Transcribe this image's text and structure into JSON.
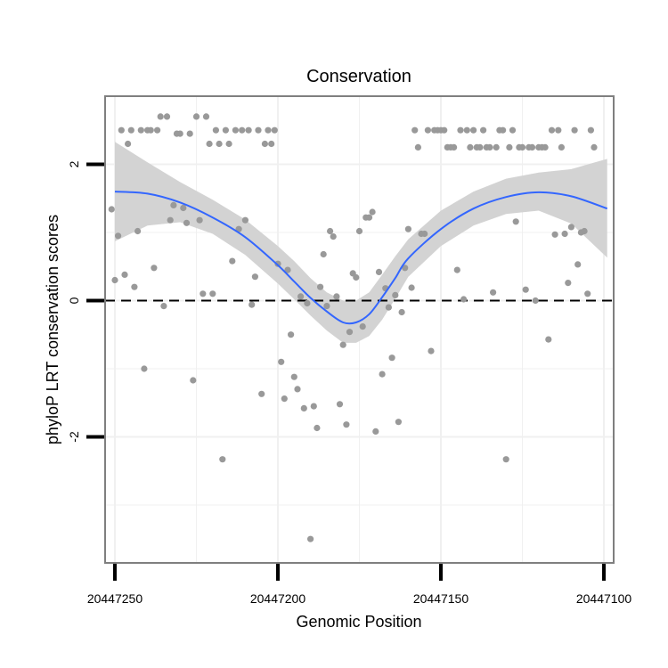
{
  "chart_data": {
    "type": "scatter",
    "title": "Conservation",
    "xlabel": "Genomic Position",
    "ylabel": "phyloP LRT conservation scores",
    "x_reversed": true,
    "xlim": [
      20447253,
      20447097
    ],
    "ylim": [
      -3.85,
      3.0
    ],
    "x_ticks": [
      20447250,
      20447200,
      20447150,
      20447100
    ],
    "x_tick_labels": [
      "20447250",
      "20447200",
      "20447150",
      "20447100"
    ],
    "y_ticks": [
      2,
      0,
      -2
    ],
    "y_tick_labels": [
      "2",
      "0",
      "-2"
    ],
    "reference_line": {
      "y": 0,
      "style": "dashed"
    },
    "grid": true,
    "colors": {
      "points": "#999999",
      "smooth": "#3366ff",
      "ribbon": "#d3d3d3",
      "panel_border": "#7f7f7f",
      "grid": "#f0f0f0"
    },
    "points": [
      {
        "x": 20447251,
        "y": 1.34
      },
      {
        "x": 20447250,
        "y": 0.3
      },
      {
        "x": 20447249,
        "y": 0.95
      },
      {
        "x": 20447248,
        "y": 2.5
      },
      {
        "x": 20447247,
        "y": 0.38
      },
      {
        "x": 20447246,
        "y": 2.3
      },
      {
        "x": 20447245,
        "y": 2.5
      },
      {
        "x": 20447244,
        "y": 0.2
      },
      {
        "x": 20447243,
        "y": 1.02
      },
      {
        "x": 20447242,
        "y": 2.5
      },
      {
        "x": 20447241,
        "y": -1.0
      },
      {
        "x": 20447240,
        "y": 2.5
      },
      {
        "x": 20447239,
        "y": 2.5
      },
      {
        "x": 20447238,
        "y": 0.48
      },
      {
        "x": 20447237,
        "y": 2.5
      },
      {
        "x": 20447236,
        "y": 2.7
      },
      {
        "x": 20447235,
        "y": -0.08
      },
      {
        "x": 20447234,
        "y": 2.7
      },
      {
        "x": 20447233,
        "y": 1.18
      },
      {
        "x": 20447232,
        "y": 1.4
      },
      {
        "x": 20447231,
        "y": 2.45
      },
      {
        "x": 20447230,
        "y": 2.45
      },
      {
        "x": 20447229,
        "y": 1.36
      },
      {
        "x": 20447228,
        "y": 1.14
      },
      {
        "x": 20447227,
        "y": 2.45
      },
      {
        "x": 20447226,
        "y": -1.17
      },
      {
        "x": 20447225,
        "y": 2.7
      },
      {
        "x": 20447224,
        "y": 1.18
      },
      {
        "x": 20447223,
        "y": 0.1
      },
      {
        "x": 20447222,
        "y": 2.7
      },
      {
        "x": 20447221,
        "y": 2.3
      },
      {
        "x": 20447220,
        "y": 0.1
      },
      {
        "x": 20447219,
        "y": 2.5
      },
      {
        "x": 20447218,
        "y": 2.3
      },
      {
        "x": 20447217,
        "y": -2.33
      },
      {
        "x": 20447216,
        "y": 2.5
      },
      {
        "x": 20447215,
        "y": 2.3
      },
      {
        "x": 20447214,
        "y": 0.58
      },
      {
        "x": 20447213,
        "y": 2.5
      },
      {
        "x": 20447212,
        "y": 1.05
      },
      {
        "x": 20447211,
        "y": 2.5
      },
      {
        "x": 20447210,
        "y": 1.18
      },
      {
        "x": 20447209,
        "y": 2.5
      },
      {
        "x": 20447208,
        "y": -0.06
      },
      {
        "x": 20447207,
        "y": 0.35
      },
      {
        "x": 20447206,
        "y": 2.5
      },
      {
        "x": 20447205,
        "y": -1.37
      },
      {
        "x": 20447204,
        "y": 2.3
      },
      {
        "x": 20447203,
        "y": 2.5
      },
      {
        "x": 20447202,
        "y": 2.3
      },
      {
        "x": 20447201,
        "y": 2.5
      },
      {
        "x": 20447200,
        "y": 0.54
      },
      {
        "x": 20447199,
        "y": -0.9
      },
      {
        "x": 20447198,
        "y": -1.44
      },
      {
        "x": 20447197,
        "y": 0.45
      },
      {
        "x": 20447196,
        "y": -0.5
      },
      {
        "x": 20447195,
        "y": -1.12
      },
      {
        "x": 20447194,
        "y": -1.3
      },
      {
        "x": 20447193,
        "y": 0.06
      },
      {
        "x": 20447192,
        "y": -1.58
      },
      {
        "x": 20447191,
        "y": -0.04
      },
      {
        "x": 20447190,
        "y": -3.5
      },
      {
        "x": 20447189,
        "y": -1.55
      },
      {
        "x": 20447188,
        "y": -1.87
      },
      {
        "x": 20447187,
        "y": 0.2
      },
      {
        "x": 20447186,
        "y": 0.68
      },
      {
        "x": 20447185,
        "y": -0.08
      },
      {
        "x": 20447184,
        "y": 1.02
      },
      {
        "x": 20447183,
        "y": 0.94
      },
      {
        "x": 20447182,
        "y": 0.06
      },
      {
        "x": 20447181,
        "y": -1.52
      },
      {
        "x": 20447180,
        "y": -0.65
      },
      {
        "x": 20447179,
        "y": -1.82
      },
      {
        "x": 20447178,
        "y": -0.46
      },
      {
        "x": 20447177,
        "y": 0.4
      },
      {
        "x": 20447176,
        "y": 0.34
      },
      {
        "x": 20447175,
        "y": 1.02
      },
      {
        "x": 20447174,
        "y": -0.38
      },
      {
        "x": 20447173,
        "y": 1.22
      },
      {
        "x": 20447172,
        "y": 1.22
      },
      {
        "x": 20447171,
        "y": 1.3
      },
      {
        "x": 20447170,
        "y": -1.92
      },
      {
        "x": 20447169,
        "y": 0.42
      },
      {
        "x": 20447168,
        "y": -1.08
      },
      {
        "x": 20447167,
        "y": 0.18
      },
      {
        "x": 20447166,
        "y": -0.1
      },
      {
        "x": 20447165,
        "y": -0.84
      },
      {
        "x": 20447164,
        "y": 0.08
      },
      {
        "x": 20447163,
        "y": -1.78
      },
      {
        "x": 20447162,
        "y": -0.17
      },
      {
        "x": 20447161,
        "y": 0.48
      },
      {
        "x": 20447160,
        "y": 1.05
      },
      {
        "x": 20447159,
        "y": 0.19
      },
      {
        "x": 20447158,
        "y": 2.5
      },
      {
        "x": 20447157,
        "y": 2.25
      },
      {
        "x": 20447156,
        "y": 0.98
      },
      {
        "x": 20447155,
        "y": 0.98
      },
      {
        "x": 20447154,
        "y": 2.5
      },
      {
        "x": 20447153,
        "y": -0.74
      },
      {
        "x": 20447152,
        "y": 2.5
      },
      {
        "x": 20447151,
        "y": 2.5
      },
      {
        "x": 20447150,
        "y": 2.5
      },
      {
        "x": 20447149,
        "y": 2.5
      },
      {
        "x": 20447148,
        "y": 2.25
      },
      {
        "x": 20447147,
        "y": 2.25
      },
      {
        "x": 20447146,
        "y": 2.25
      },
      {
        "x": 20447145,
        "y": 0.45
      },
      {
        "x": 20447144,
        "y": 2.5
      },
      {
        "x": 20447143,
        "y": 0.02
      },
      {
        "x": 20447142,
        "y": 2.5
      },
      {
        "x": 20447141,
        "y": 2.25
      },
      {
        "x": 20447140,
        "y": 2.5
      },
      {
        "x": 20447139,
        "y": 2.25
      },
      {
        "x": 20447138,
        "y": 2.25
      },
      {
        "x": 20447137,
        "y": 2.5
      },
      {
        "x": 20447136,
        "y": 2.25
      },
      {
        "x": 20447135,
        "y": 2.25
      },
      {
        "x": 20447134,
        "y": 0.12
      },
      {
        "x": 20447133,
        "y": 2.25
      },
      {
        "x": 20447132,
        "y": 2.5
      },
      {
        "x": 20447131,
        "y": 2.5
      },
      {
        "x": 20447130,
        "y": -2.33
      },
      {
        "x": 20447129,
        "y": 2.25
      },
      {
        "x": 20447128,
        "y": 2.5
      },
      {
        "x": 20447127,
        "y": 1.16
      },
      {
        "x": 20447126,
        "y": 2.25
      },
      {
        "x": 20447125,
        "y": 2.25
      },
      {
        "x": 20447124,
        "y": 0.16
      },
      {
        "x": 20447123,
        "y": 2.25
      },
      {
        "x": 20447122,
        "y": 2.25
      },
      {
        "x": 20447121,
        "y": 0.0
      },
      {
        "x": 20447120,
        "y": 2.25
      },
      {
        "x": 20447119,
        "y": 2.25
      },
      {
        "x": 20447118,
        "y": 2.25
      },
      {
        "x": 20447117,
        "y": -0.57
      },
      {
        "x": 20447116,
        "y": 2.5
      },
      {
        "x": 20447115,
        "y": 0.97
      },
      {
        "x": 20447114,
        "y": 2.5
      },
      {
        "x": 20447113,
        "y": 2.25
      },
      {
        "x": 20447112,
        "y": 0.98
      },
      {
        "x": 20447111,
        "y": 0.26
      },
      {
        "x": 20447110,
        "y": 1.08
      },
      {
        "x": 20447109,
        "y": 2.5
      },
      {
        "x": 20447108,
        "y": 0.53
      },
      {
        "x": 20447107,
        "y": 1.0
      },
      {
        "x": 20447106,
        "y": 1.02
      },
      {
        "x": 20447105,
        "y": 0.1
      },
      {
        "x": 20447104,
        "y": 2.5
      },
      {
        "x": 20447103,
        "y": 2.25
      }
    ],
    "smooth": [
      {
        "x": 20447250,
        "y": 1.6,
        "lo": 0.87,
        "hi": 2.33
      },
      {
        "x": 20447240,
        "y": 1.57,
        "lo": 1.1,
        "hi": 2.03
      },
      {
        "x": 20447230,
        "y": 1.44,
        "lo": 1.15,
        "hi": 1.74
      },
      {
        "x": 20447220,
        "y": 1.22,
        "lo": 0.98,
        "hi": 1.48
      },
      {
        "x": 20447210,
        "y": 0.93,
        "lo": 0.67,
        "hi": 1.19
      },
      {
        "x": 20447200,
        "y": 0.52,
        "lo": 0.25,
        "hi": 0.8
      },
      {
        "x": 20447195,
        "y": 0.28,
        "lo": 0.02,
        "hi": 0.58
      },
      {
        "x": 20447190,
        "y": 0.04,
        "lo": -0.22,
        "hi": 0.33
      },
      {
        "x": 20447185,
        "y": -0.16,
        "lo": -0.44,
        "hi": 0.12
      },
      {
        "x": 20447180,
        "y": -0.32,
        "lo": -0.62,
        "hi": 0.0
      },
      {
        "x": 20447176,
        "y": -0.32,
        "lo": -0.62,
        "hi": 0.0
      },
      {
        "x": 20447172,
        "y": -0.2,
        "lo": -0.52,
        "hi": 0.12
      },
      {
        "x": 20447168,
        "y": 0.05,
        "lo": -0.28,
        "hi": 0.38
      },
      {
        "x": 20447164,
        "y": 0.33,
        "lo": 0.03,
        "hi": 0.65
      },
      {
        "x": 20447160,
        "y": 0.62,
        "lo": 0.35,
        "hi": 0.9
      },
      {
        "x": 20447150,
        "y": 1.05,
        "lo": 0.8,
        "hi": 1.32
      },
      {
        "x": 20447140,
        "y": 1.35,
        "lo": 1.1,
        "hi": 1.6
      },
      {
        "x": 20447130,
        "y": 1.52,
        "lo": 1.27,
        "hi": 1.79
      },
      {
        "x": 20447120,
        "y": 1.59,
        "lo": 1.32,
        "hi": 1.88
      },
      {
        "x": 20447110,
        "y": 1.53,
        "lo": 1.13,
        "hi": 1.93
      },
      {
        "x": 20447099,
        "y": 1.35,
        "lo": 0.63,
        "hi": 2.08
      }
    ]
  }
}
